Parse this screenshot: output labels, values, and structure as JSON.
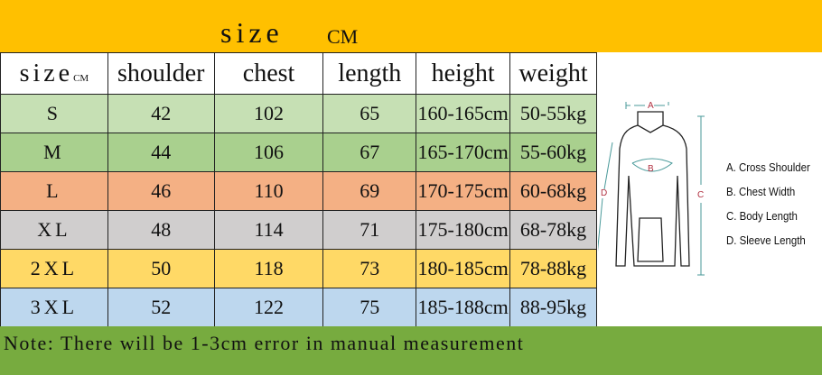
{
  "banner": {
    "title": "size",
    "unit": "CM"
  },
  "table": {
    "headers": [
      "size",
      "shoulder",
      "chest",
      "length",
      "height",
      "weight"
    ],
    "header_unit": "CM",
    "rows": [
      {
        "size": "S",
        "shoulder": "42",
        "chest": "102",
        "length": "65",
        "height": "160-165cm",
        "weight": "50-55kg",
        "color": "#C6E0B4"
      },
      {
        "size": "M",
        "shoulder": "44",
        "chest": "106",
        "length": "67",
        "height": "165-170cm",
        "weight": "55-60kg",
        "color": "#A9D08E"
      },
      {
        "size": "L",
        "shoulder": "46",
        "chest": "110",
        "length": "69",
        "height": "170-175cm",
        "weight": "60-68kg",
        "color": "#F4B084"
      },
      {
        "size": "XL",
        "shoulder": "48",
        "chest": "114",
        "length": "71",
        "height": "175-180cm",
        "weight": "68-78kg",
        "color": "#D0CECE"
      },
      {
        "size": "2XL",
        "shoulder": "50",
        "chest": "118",
        "length": "73",
        "height": "180-185cm",
        "weight": "78-88kg",
        "color": "#FFD966"
      },
      {
        "size": "3XL",
        "shoulder": "52",
        "chest": "122",
        "length": "75",
        "height": "185-188cm",
        "weight": "88-95kg",
        "color": "#BDD7EE"
      }
    ]
  },
  "diagram": {
    "labels": [
      "A",
      "B",
      "C",
      "D"
    ],
    "icon": "hoodie-icon"
  },
  "legend": [
    "A. Cross Shoulder",
    "B. Chest Width",
    "C. Body Length",
    "D. Sleeve Length"
  ],
  "note": "Note: There will be 1-3cm error in manual measurement",
  "colors": {
    "banner": "#FFC000",
    "footer": "#77AB3F"
  }
}
